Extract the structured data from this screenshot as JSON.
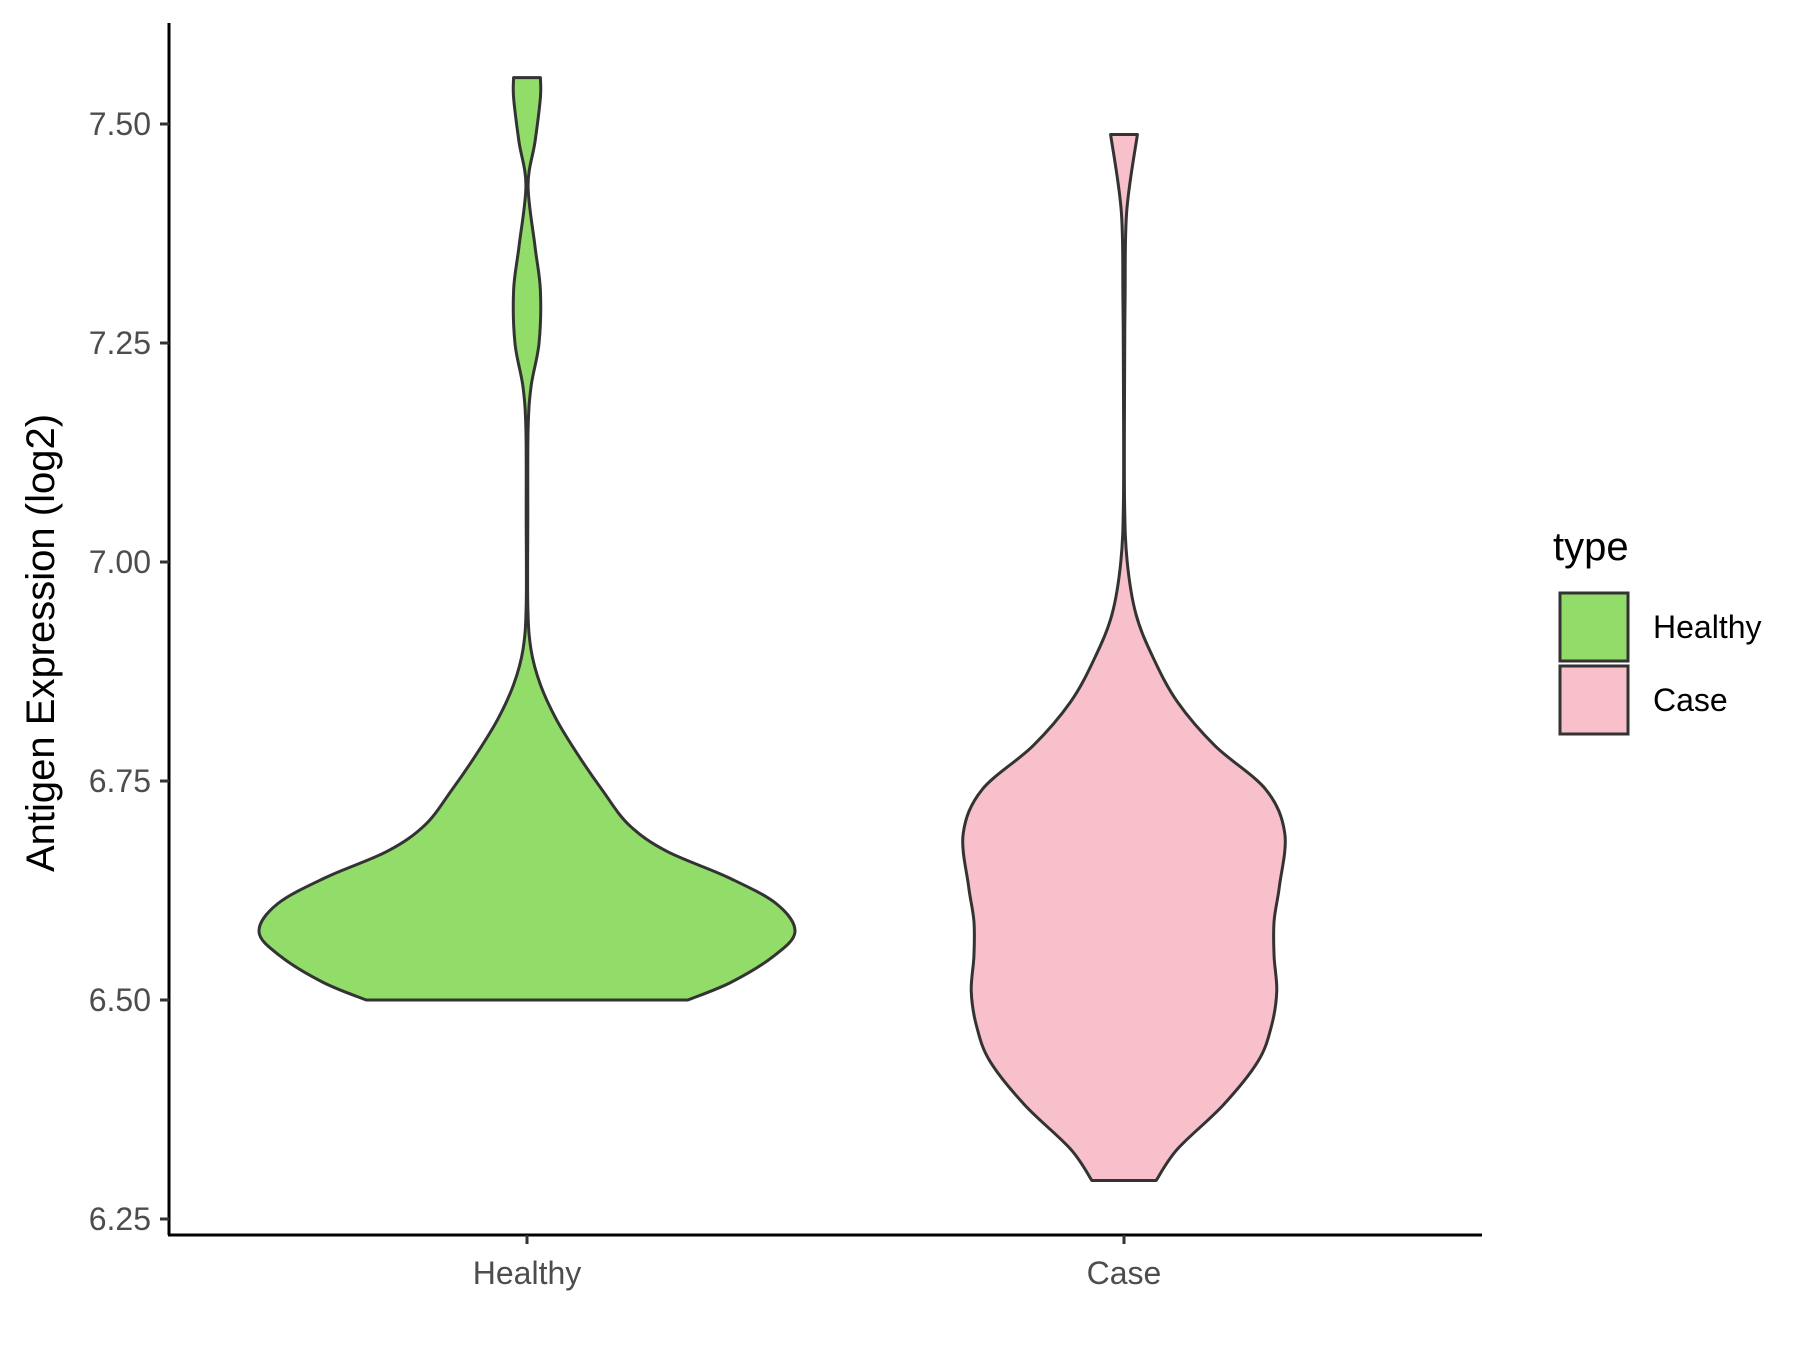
{
  "chart_data": {
    "type": "violin",
    "title": "",
    "xlabel": "",
    "ylabel": "Antigen Expression (log2)",
    "ylim": [
      6.24,
      7.62
    ],
    "yticks": [
      6.25,
      6.5,
      6.75,
      7.0,
      7.25,
      7.5
    ],
    "ytick_labels": [
      "6.25",
      "6.50",
      "6.75",
      "7.00",
      "7.25",
      "7.50"
    ],
    "categories": [
      "Healthy",
      "Case"
    ],
    "grid": false,
    "legend": {
      "title": "type",
      "position": "right",
      "entries": [
        "Healthy",
        "Case"
      ]
    },
    "series": [
      {
        "name": "Healthy",
        "color": "#92dc6a",
        "min": 6.5,
        "max": 7.553,
        "density": [
          [
            6.5,
            0.6
          ],
          [
            6.52,
            0.76
          ],
          [
            6.55,
            0.92
          ],
          [
            6.578,
            1.0
          ],
          [
            6.61,
            0.93
          ],
          [
            6.64,
            0.75
          ],
          [
            6.67,
            0.52
          ],
          [
            6.7,
            0.38
          ],
          [
            6.74,
            0.28
          ],
          [
            6.78,
            0.19
          ],
          [
            6.82,
            0.11
          ],
          [
            6.86,
            0.05
          ],
          [
            6.9,
            0.015
          ],
          [
            6.95,
            0.003
          ],
          [
            7.05,
            0.003
          ],
          [
            7.15,
            0.004
          ],
          [
            7.2,
            0.015
          ],
          [
            7.25,
            0.045
          ],
          [
            7.31,
            0.05
          ],
          [
            7.36,
            0.03
          ],
          [
            7.43,
            0.004
          ],
          [
            7.48,
            0.03
          ],
          [
            7.53,
            0.05
          ],
          [
            7.553,
            0.05
          ]
        ]
      },
      {
        "name": "Case",
        "color": "#f7c0cb",
        "min": 6.294,
        "max": 7.488,
        "density": [
          [
            6.294,
            0.12
          ],
          [
            6.33,
            0.2
          ],
          [
            6.38,
            0.37
          ],
          [
            6.43,
            0.5
          ],
          [
            6.47,
            0.55
          ],
          [
            6.51,
            0.57
          ],
          [
            6.55,
            0.56
          ],
          [
            6.59,
            0.56
          ],
          [
            6.63,
            0.58
          ],
          [
            6.69,
            0.6
          ],
          [
            6.74,
            0.53
          ],
          [
            6.79,
            0.34
          ],
          [
            6.84,
            0.2
          ],
          [
            6.89,
            0.11
          ],
          [
            6.94,
            0.045
          ],
          [
            7.0,
            0.012
          ],
          [
            7.07,
            0.002
          ],
          [
            7.2,
            0.002
          ],
          [
            7.3,
            0.004
          ],
          [
            7.4,
            0.01
          ],
          [
            7.488,
            0.05
          ]
        ]
      }
    ]
  }
}
